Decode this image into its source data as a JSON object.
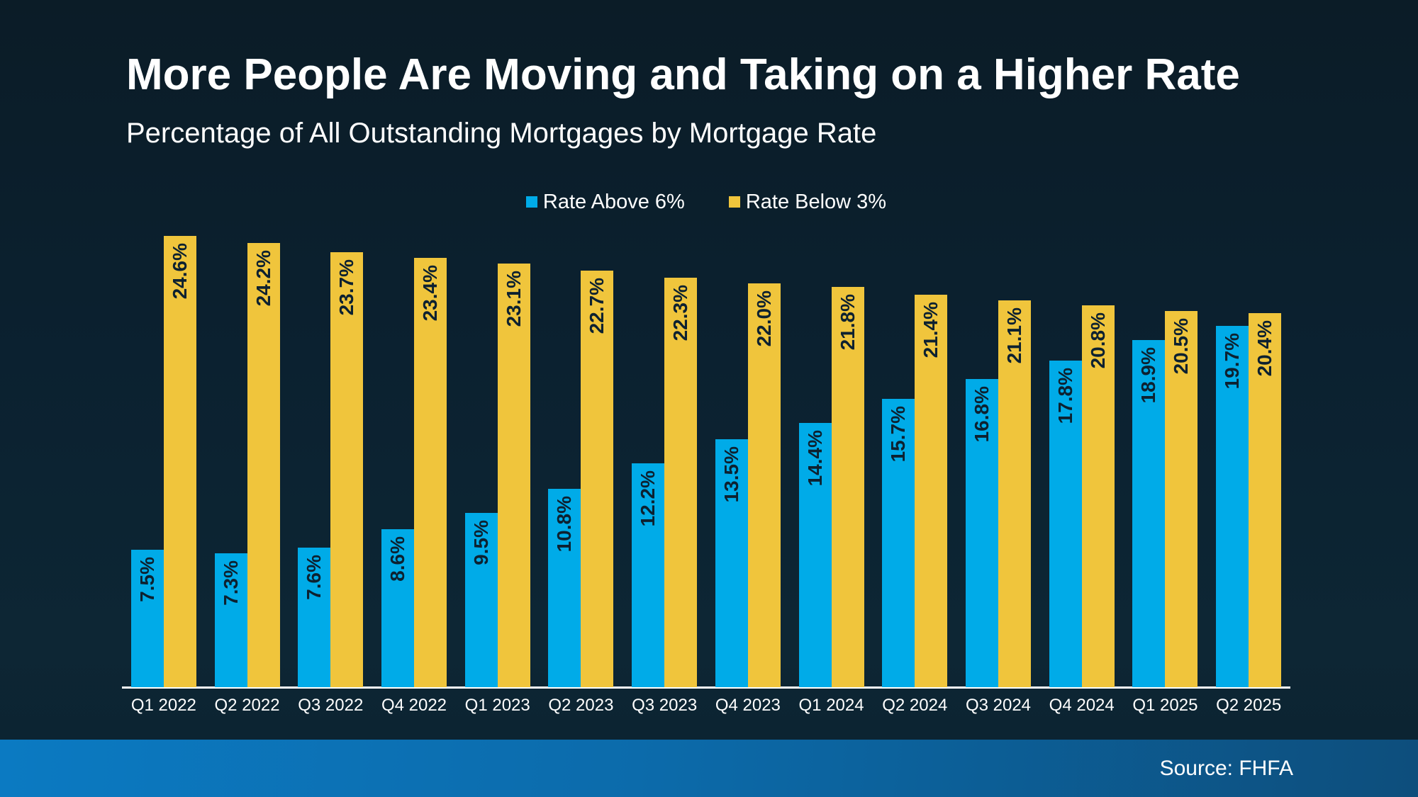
{
  "header": {
    "title": "More People Are Moving and Taking on a Higher Rate",
    "subtitle": "Percentage of All Outstanding Mortgages by Mortgage Rate"
  },
  "legend": {
    "items": [
      {
        "label": "Rate Above 6%",
        "color": "#00abe8"
      },
      {
        "label": "Rate Below 3%",
        "color": "#f0c53c"
      }
    ]
  },
  "footer": {
    "source": "Source: FHFA"
  },
  "colors": {
    "background_top": "#0b1c27",
    "background_bottom": "#0d2634",
    "bar_blue": "#00abe8",
    "bar_yellow": "#f0c53c",
    "bar_value_label": "#0d2130",
    "axis_line": "#ffffff",
    "text": "#ffffff",
    "source_bar_left": "#0b7ac2",
    "source_bar_right": "#0d4e7c"
  },
  "chart_data": {
    "type": "bar",
    "title": "More People Are Moving and Taking on a Higher Rate",
    "subtitle": "Percentage of All Outstanding Mortgages by Mortgage Rate",
    "categories": [
      "Q1 2022",
      "Q2 2022",
      "Q3 2022",
      "Q4 2022",
      "Q1 2023",
      "Q2 2023",
      "Q3 2023",
      "Q4 2023",
      "Q1 2024",
      "Q2 2024",
      "Q3 2024",
      "Q4 2024",
      "Q1 2025",
      "Q2 2025"
    ],
    "series": [
      {
        "name": "Rate Above 6%",
        "color": "#00abe8",
        "values": [
          7.5,
          7.3,
          7.6,
          8.6,
          9.5,
          10.8,
          12.2,
          13.5,
          14.4,
          15.7,
          16.8,
          17.8,
          18.9,
          19.7
        ],
        "labels": [
          "7.5%",
          "7.3%",
          "7.6%",
          "8.6%",
          "9.5%",
          "10.8%",
          "12.2%",
          "13.5%",
          "14.4%",
          "15.7%",
          "16.8%",
          "17.8%",
          "18.9%",
          "19.7%"
        ]
      },
      {
        "name": "Rate Below 3%",
        "color": "#f0c53c",
        "values": [
          24.6,
          24.2,
          23.7,
          23.4,
          23.1,
          22.7,
          22.3,
          22.0,
          21.8,
          21.4,
          21.1,
          20.8,
          20.5,
          20.4
        ],
        "labels": [
          "24.6%",
          "24.2%",
          "23.7%",
          "23.4%",
          "23.1%",
          "22.7%",
          "22.3%",
          "22.0%",
          "21.8%",
          "21.4%",
          "21.1%",
          "20.8%",
          "20.5%",
          "20.4%"
        ]
      }
    ],
    "xlabel": "",
    "ylabel": "",
    "ylim": [
      0,
      26
    ],
    "grid": false,
    "legend_position": "top-center",
    "value_labels": "inside-top, rotated 90deg, read bottom-to-top",
    "source": "Source: FHFA"
  }
}
